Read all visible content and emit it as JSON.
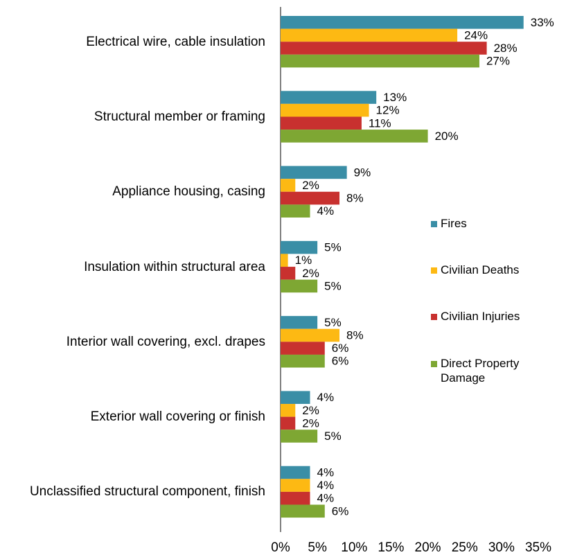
{
  "chart_data": {
    "type": "bar",
    "orientation": "horizontal",
    "categories": [
      "Electrical wire, cable insulation",
      "Structural member or framing",
      "Appliance housing, casing",
      "Insulation within structural area",
      "Interior wall covering, excl. drapes",
      "Exterior wall covering or finish",
      "Unclassified structural component, finish"
    ],
    "series": [
      {
        "name": "Fires",
        "color": "#3a8ea6",
        "values": [
          33,
          13,
          9,
          5,
          5,
          4,
          4
        ],
        "value_labels": [
          "33%",
          "13%",
          "9%",
          "5%",
          "5%",
          "4%",
          "4%"
        ]
      },
      {
        "name": "Civilian Deaths",
        "color": "#fdb913",
        "values": [
          24,
          12,
          2,
          1,
          8,
          2,
          4
        ],
        "value_labels": [
          "24%",
          "12%",
          "2%",
          "1%",
          "8%",
          "2%",
          "4%"
        ]
      },
      {
        "name": "Civilian Injuries",
        "color": "#c8312f",
        "values": [
          28,
          11,
          8,
          2,
          6,
          2,
          4
        ],
        "value_labels": [
          "28%",
          "11%",
          "8%",
          "2%",
          "6%",
          "2%",
          "4%"
        ]
      },
      {
        "name": "Direct Property Damage",
        "color": "#7ea733",
        "values": [
          27,
          20,
          4,
          5,
          6,
          5,
          6
        ],
        "value_labels": [
          "27%",
          "20%",
          "4%",
          "5%",
          "6%",
          "5%",
          "6%"
        ]
      }
    ],
    "xlim": [
      0,
      35
    ],
    "xticks": [
      {
        "value": 0,
        "label": "0%"
      },
      {
        "value": 5,
        "label": "5%"
      },
      {
        "value": 10,
        "label": "10%"
      },
      {
        "value": 15,
        "label": "15%"
      },
      {
        "value": 20,
        "label": "20%"
      },
      {
        "value": 25,
        "label": "25%"
      },
      {
        "value": 30,
        "label": "30%"
      },
      {
        "value": 35,
        "label": "35%"
      }
    ],
    "legend": "right"
  }
}
